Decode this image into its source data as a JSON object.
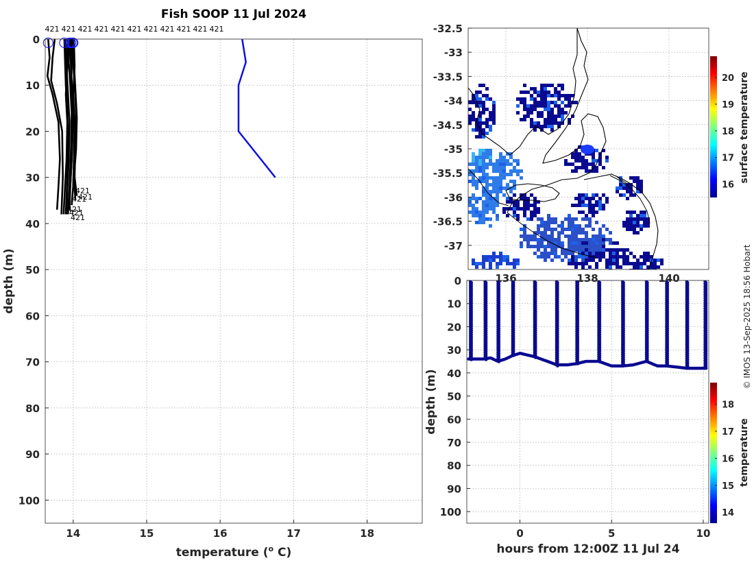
{
  "title": "Fish SOOP 11 Jul 2024",
  "credit": "© IMOS 13-Sep-2025 18:56 Hobart",
  "colors": {
    "profile_line": "#000000",
    "blue_profile": "#1010e0",
    "marker": "#1a1aff",
    "section_dots": "#0a0a90"
  },
  "chart_data": [
    {
      "id": "profile-plot",
      "type": "line",
      "title": "Fish SOOP 11 Jul 2024",
      "xlabel_main": "temperature (",
      "xlabel_sup": "o",
      "xlabel_unit": " C)",
      "ylabel": "depth (m)",
      "xlim": [
        13.62,
        18.75
      ],
      "ylim": [
        0,
        105
      ],
      "x_ticks": [
        "14",
        "15",
        "16",
        "17",
        "18"
      ],
      "y_ticks": [
        "0",
        "10",
        "20",
        "30",
        "40",
        "50",
        "60",
        "70",
        "80",
        "90",
        "100"
      ],
      "top_labels": [
        "421",
        "421",
        "421",
        "421",
        "421",
        "421",
        "421",
        "421",
        "421",
        "421",
        "421"
      ],
      "end_labels": [
        "421",
        "421",
        "421",
        "421",
        "421",
        "421"
      ],
      "surface_markers": [
        13.66,
        13.88,
        13.95,
        13.97,
        13.99,
        14.0
      ],
      "series": [
        {
          "name": "deployment-421-blue",
          "x": [
            16.3,
            16.35,
            16.25,
            16.25,
            16.75
          ],
          "y": [
            0,
            5,
            10,
            20,
            30
          ]
        },
        {
          "name": "profile-01",
          "x": [
            13.66,
            13.68,
            13.65,
            13.72,
            13.8,
            13.82,
            13.8,
            13.78
          ],
          "y": [
            0,
            4,
            8,
            12,
            18,
            26,
            32,
            37
          ]
        },
        {
          "name": "profile-02",
          "x": [
            13.75,
            13.72,
            13.7,
            13.78,
            13.85,
            13.86,
            13.84
          ],
          "y": [
            0,
            4,
            9,
            14,
            20,
            30,
            38
          ]
        },
        {
          "name": "profile-03",
          "x": [
            13.88,
            13.89,
            13.9,
            13.92,
            13.93,
            13.92,
            13.9
          ],
          "y": [
            0,
            5,
            10,
            16,
            22,
            30,
            38
          ]
        },
        {
          "name": "profile-04",
          "x": [
            13.95,
            13.94,
            13.96,
            13.98,
            13.97,
            13.95,
            13.93
          ],
          "y": [
            0,
            5,
            10,
            16,
            24,
            32,
            38
          ]
        },
        {
          "name": "profile-05",
          "x": [
            13.99,
            14.0,
            14.02,
            14.04,
            14.03,
            14.02,
            14.05
          ],
          "y": [
            0,
            5,
            10,
            16,
            22,
            30,
            34
          ]
        },
        {
          "name": "profile-06",
          "x": [
            14.0,
            14.01,
            14.03,
            14.05,
            14.04,
            14.01,
            14.03
          ],
          "y": [
            0,
            5,
            11,
            17,
            24,
            30,
            35
          ]
        },
        {
          "name": "profile-07",
          "x": [
            13.97,
            13.98,
            13.97,
            13.99,
            13.98,
            13.96,
            13.94
          ],
          "y": [
            0,
            6,
            12,
            18,
            26,
            32,
            36
          ]
        },
        {
          "name": "profile-08",
          "x": [
            13.93,
            13.92,
            13.9,
            13.92,
            13.91,
            13.89,
            13.87
          ],
          "y": [
            0,
            6,
            12,
            18,
            26,
            32,
            38
          ]
        },
        {
          "name": "profile-09",
          "x": [
            14.01,
            14.02,
            14.0,
            14.02,
            14.01,
            14.0,
            13.98
          ],
          "y": [
            0,
            6,
            12,
            18,
            26,
            32,
            36
          ]
        },
        {
          "name": "profile-10",
          "x": [
            13.96,
            13.97,
            13.99,
            14.0,
            13.98,
            13.96,
            13.95
          ],
          "y": [
            0,
            6,
            12,
            18,
            26,
            32,
            37
          ]
        },
        {
          "name": "profile-11",
          "x": [
            13.9,
            13.91,
            13.93,
            13.95,
            13.94,
            13.92,
            13.91
          ],
          "y": [
            0,
            6,
            12,
            18,
            26,
            33,
            38
          ]
        }
      ]
    },
    {
      "id": "sst-map",
      "type": "heatmap",
      "colorbar_label": "surface temperature",
      "lat_ticks": [
        "-32.5",
        "-33",
        "-33.5",
        "-34",
        "-34.5",
        "-35",
        "-35.5",
        "-36",
        "-36.5",
        "-37"
      ],
      "lon_ticks": [
        "136",
        "138",
        "140"
      ],
      "lat_range": [
        -37.5,
        -32.5
      ],
      "colorbar_ticks": [
        "16",
        "17",
        "18",
        "19",
        "20"
      ],
      "colorbar_range": [
        15.5,
        20.8
      ]
    },
    {
      "id": "depth-time-section",
      "type": "scatter",
      "xlabel": "hours from 12:00Z 11 Jul 24",
      "ylabel": "depth (m)",
      "xlim": [
        -2.9,
        10.3
      ],
      "ylim": [
        0,
        105
      ],
      "x_ticks": [
        "0",
        "5",
        "10"
      ],
      "y_ticks": [
        "0",
        "10",
        "20",
        "30",
        "40",
        "50",
        "60",
        "70",
        "80",
        "90",
        "100"
      ],
      "colorbar_label": "temperature",
      "colorbar_ticks": [
        "14",
        "15",
        "16",
        "17",
        "18"
      ],
      "colorbar_range": [
        13.6,
        18.8
      ],
      "casts": [
        -2.7,
        -1.9,
        -1.2,
        -0.4,
        0.8,
        2.0,
        3.1,
        4.3,
        5.6,
        6.9,
        8.0,
        9.1,
        10.1
      ],
      "bottom_trace": {
        "x": [
          -2.8,
          -2.0,
          -1.6,
          -1.2,
          -0.8,
          -0.4,
          0.0,
          0.8,
          1.5,
          2.0,
          2.6,
          3.1,
          3.6,
          4.3,
          5.0,
          5.6,
          6.2,
          6.9,
          7.5,
          8.0,
          8.6,
          9.1,
          9.6,
          10.1
        ],
        "y": [
          34,
          34,
          33.5,
          35,
          34,
          32.5,
          31.5,
          33,
          35,
          36.5,
          36.5,
          36,
          35,
          35,
          37,
          37,
          36.5,
          35,
          37,
          37,
          37.5,
          38,
          38,
          38
        ]
      }
    }
  ]
}
